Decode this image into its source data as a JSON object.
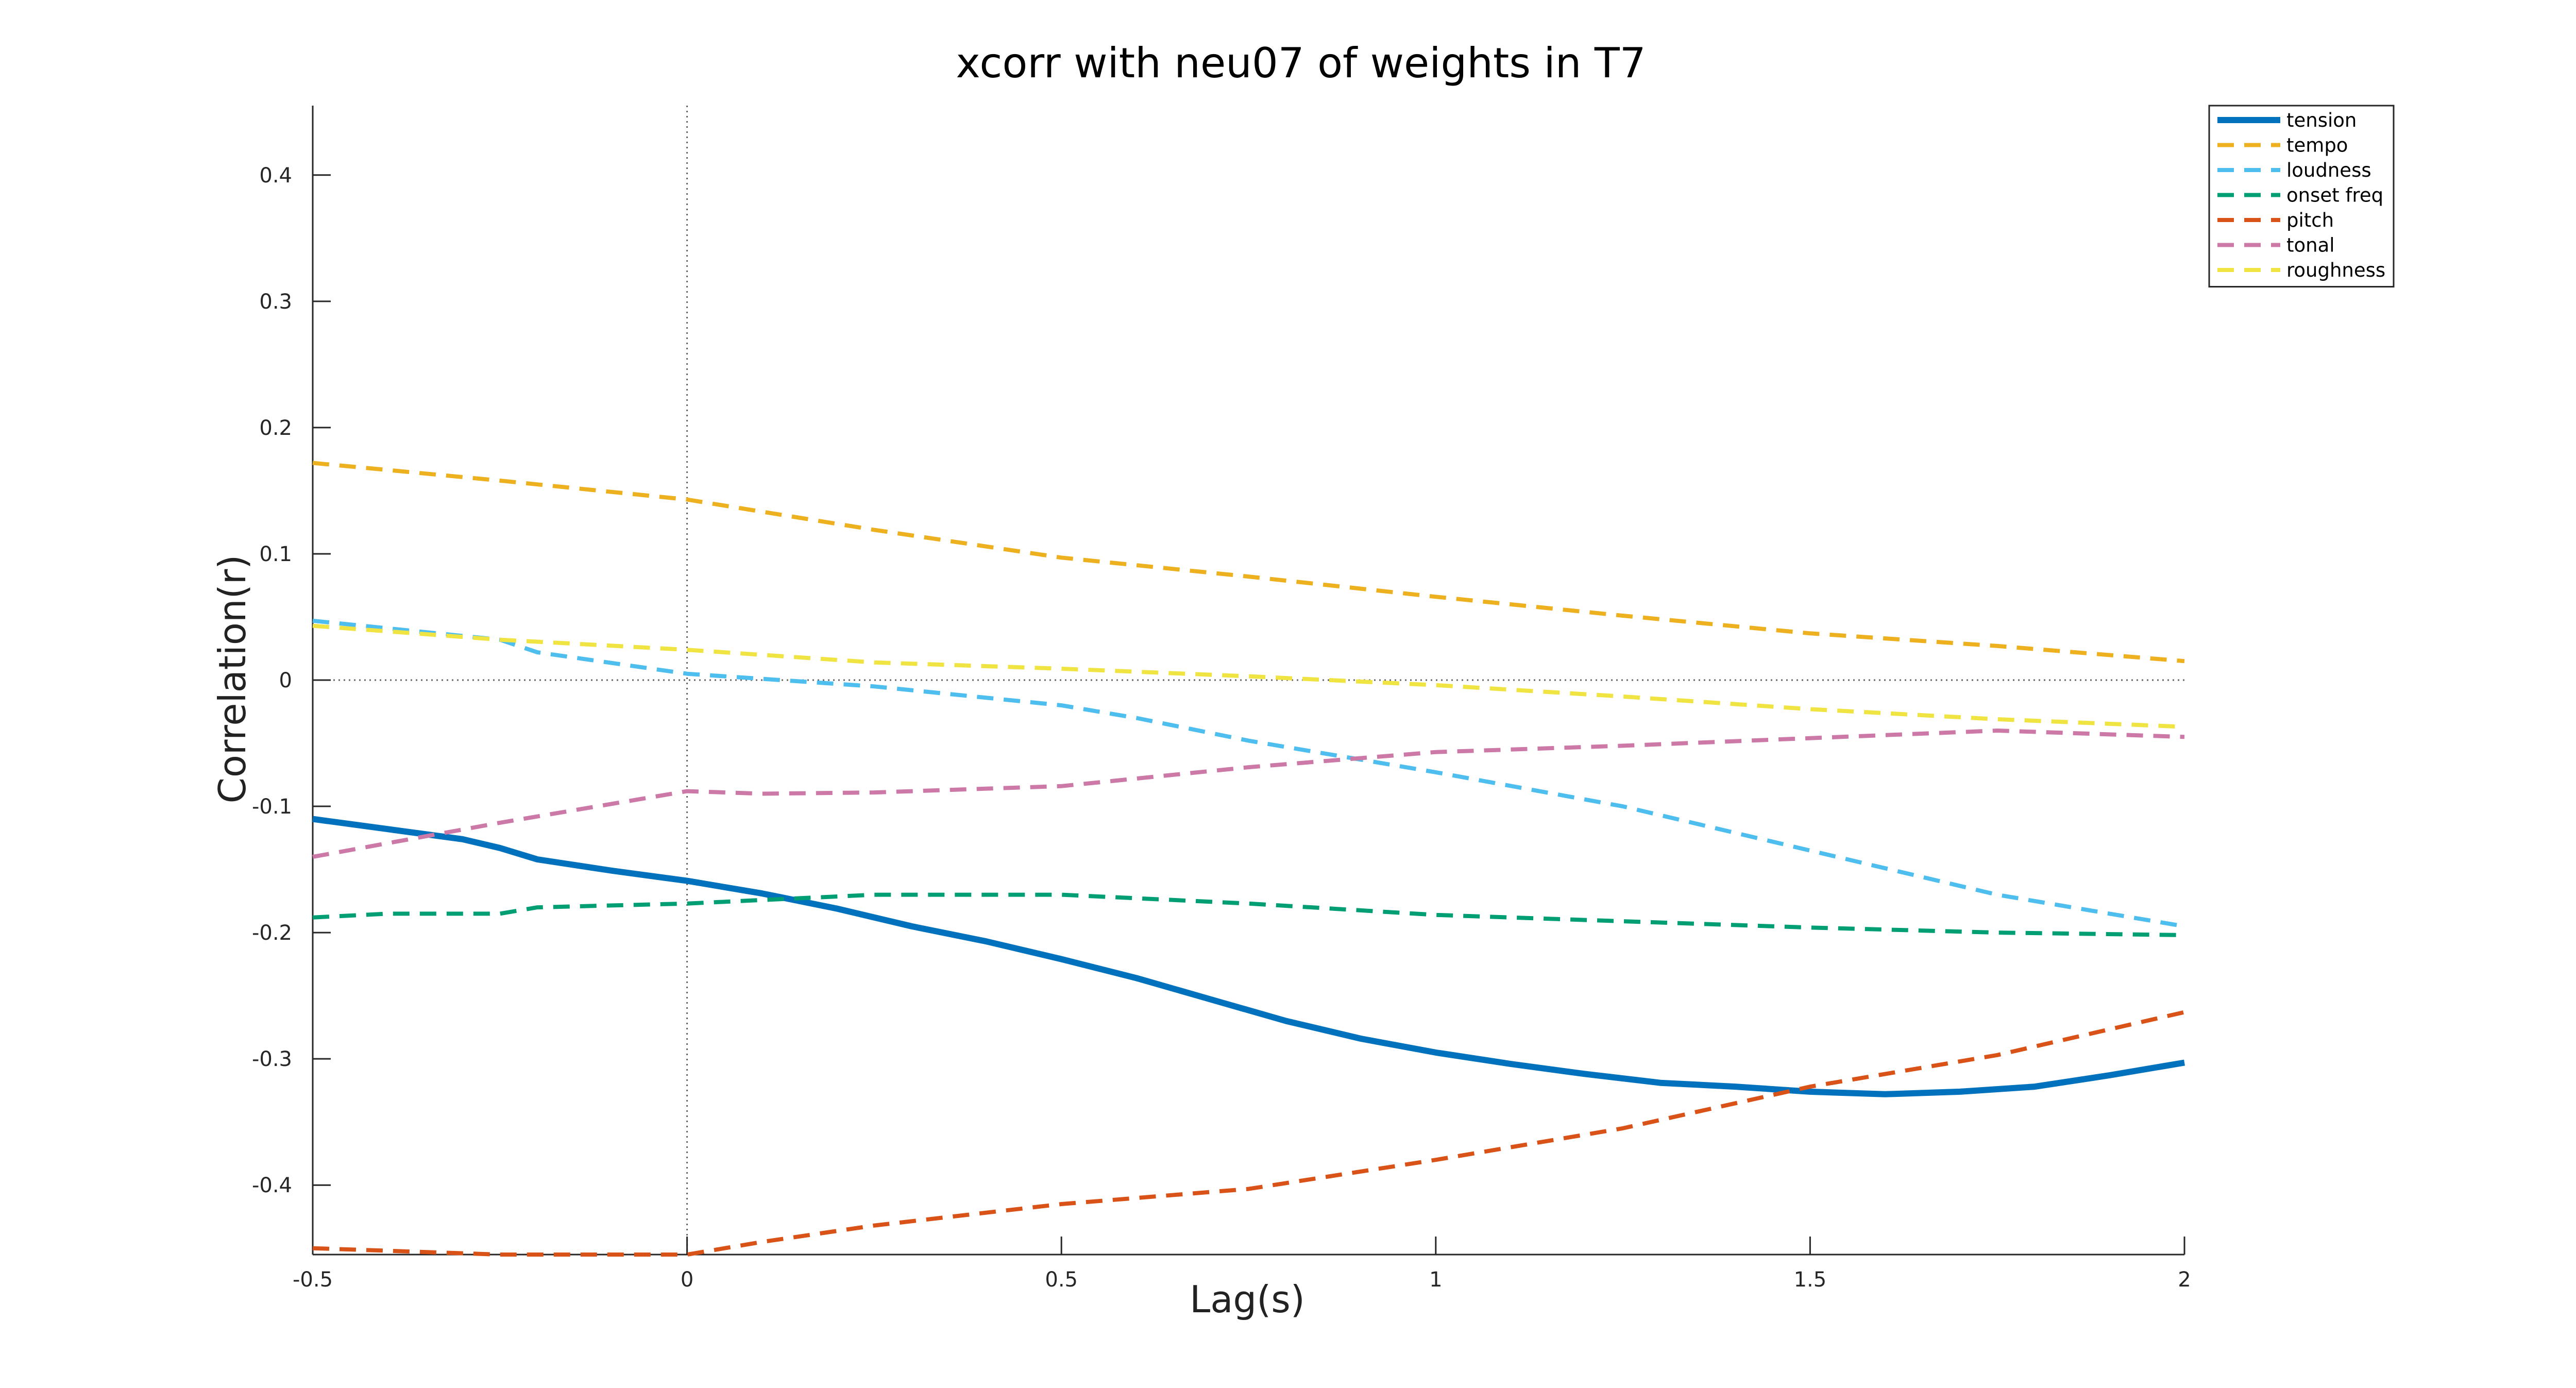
{
  "chart_data": {
    "type": "line",
    "title": "xcorr with neu07 of weights in T7",
    "xlabel": "Lag(s)",
    "ylabel": "Correlation(r)",
    "xlim": [
      -0.5,
      2
    ],
    "ylim": [
      -0.455,
      0.455
    ],
    "xticks": [
      -0.5,
      0,
      0.5,
      1,
      1.5,
      2
    ],
    "xtick_labels": [
      "-0.5",
      "0",
      "0.5",
      "1",
      "1.5",
      "2"
    ],
    "yticks": [
      -0.4,
      -0.3,
      -0.2,
      -0.1,
      0,
      0.1,
      0.2,
      0.3,
      0.4
    ],
    "ytick_labels": [
      "-0.4",
      "-0.3",
      "-0.2",
      "-0.1",
      "0",
      "0.1",
      "0.2",
      "0.3",
      "0.4"
    ],
    "grid": false,
    "reference_lines": {
      "x": 0,
      "y": 0,
      "style": "dotted"
    },
    "legend_position": "top-right",
    "series": [
      {
        "name": "tension",
        "color": "#0072BD",
        "style": "solid",
        "x": [
          -0.5,
          -0.4,
          -0.3,
          -0.25,
          -0.2,
          -0.1,
          0,
          0.1,
          0.2,
          0.3,
          0.4,
          0.5,
          0.6,
          0.7,
          0.8,
          0.9,
          1,
          1.1,
          1.2,
          1.3,
          1.4,
          1.5,
          1.6,
          1.7,
          1.8,
          1.9,
          2
        ],
        "y": [
          -0.11,
          -0.118,
          -0.126,
          -0.133,
          -0.142,
          -0.151,
          -0.159,
          -0.169,
          -0.181,
          -0.195,
          -0.207,
          -0.221,
          -0.236,
          -0.253,
          -0.27,
          -0.284,
          -0.295,
          -0.304,
          -0.312,
          -0.319,
          -0.322,
          -0.326,
          -0.328,
          -0.326,
          -0.322,
          -0.313,
          -0.303
        ]
      },
      {
        "name": "tempo",
        "color": "#EDB120",
        "style": "dashed",
        "x": [
          -0.5,
          -0.25,
          0,
          0.25,
          0.5,
          0.75,
          1,
          1.25,
          1.5,
          1.75,
          2
        ],
        "y": [
          0.172,
          0.158,
          0.143,
          0.119,
          0.097,
          0.082,
          0.066,
          0.051,
          0.037,
          0.027,
          0.015
        ]
      },
      {
        "name": "loudness",
        "color": "#4DBEEE",
        "style": "dashed",
        "x": [
          -0.5,
          -0.25,
          -0.2,
          0,
          0.25,
          0.5,
          0.6,
          0.75,
          1,
          1.25,
          1.5,
          1.75,
          1.9,
          2
        ],
        "y": [
          0.047,
          0.032,
          0.022,
          0.005,
          -0.005,
          -0.02,
          -0.03,
          -0.048,
          -0.073,
          -0.1,
          -0.135,
          -0.17,
          -0.185,
          -0.195
        ]
      },
      {
        "name": "onset freq",
        "color": "#009E73",
        "style": "dashed",
        "x": [
          -0.5,
          -0.4,
          -0.25,
          -0.2,
          0,
          0.25,
          0.5,
          0.75,
          1,
          1.25,
          1.5,
          1.75,
          2
        ],
        "y": [
          -0.188,
          -0.185,
          -0.185,
          -0.18,
          -0.177,
          -0.17,
          -0.17,
          -0.177,
          -0.186,
          -0.191,
          -0.196,
          -0.2,
          -0.202
        ]
      },
      {
        "name": "pitch",
        "color": "#D95319",
        "style": "dashed",
        "x": [
          -0.5,
          -0.25,
          0,
          0.1,
          0.25,
          0.5,
          0.75,
          1,
          1.25,
          1.5,
          1.75,
          2
        ],
        "y": [
          -0.45,
          -0.455,
          -0.455,
          -0.445,
          -0.432,
          -0.415,
          -0.403,
          -0.38,
          -0.355,
          -0.322,
          -0.297,
          -0.263
        ]
      },
      {
        "name": "tonal",
        "color": "#CC79A7",
        "style": "dashed",
        "x": [
          -0.5,
          -0.25,
          0,
          0.1,
          0.25,
          0.5,
          0.75,
          1,
          1.25,
          1.5,
          1.75,
          2
        ],
        "y": [
          -0.14,
          -0.113,
          -0.088,
          -0.09,
          -0.089,
          -0.084,
          -0.069,
          -0.057,
          -0.052,
          -0.046,
          -0.04,
          -0.045
        ]
      },
      {
        "name": "roughness",
        "color": "#F0E442",
        "style": "dashed",
        "x": [
          -0.5,
          -0.25,
          0,
          0.25,
          0.5,
          0.75,
          1,
          1.25,
          1.5,
          1.75,
          2
        ],
        "y": [
          0.043,
          0.032,
          0.024,
          0.014,
          0.009,
          0.003,
          -0.004,
          -0.013,
          -0.023,
          -0.031,
          -0.037
        ]
      }
    ]
  }
}
